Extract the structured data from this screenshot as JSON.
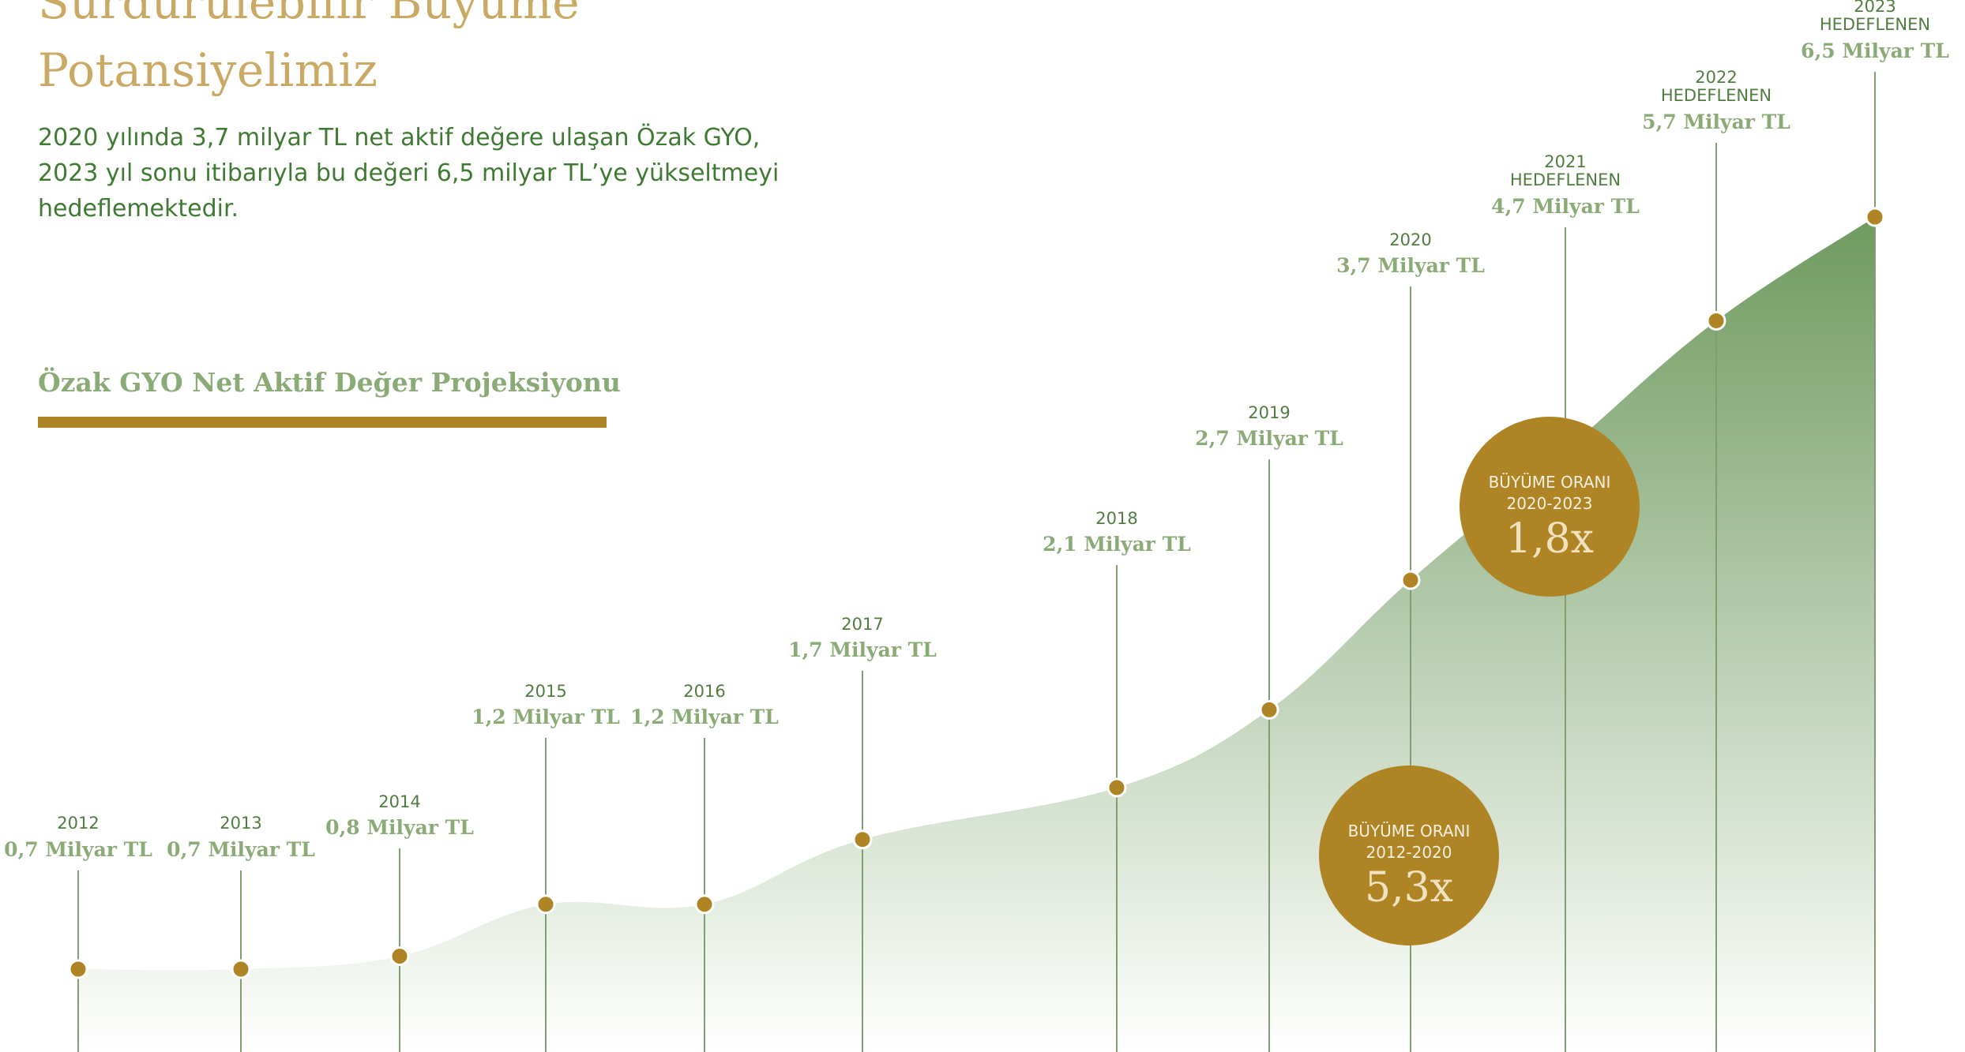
{
  "header": {
    "title_line1": "Sürdürülebilir Büyüme",
    "title_line2": "Potansiyelimiz",
    "description": "2020 yılında 3,7 milyar TL net aktif değere ulaşan Özak GYO, 2023 yıl sonu itibarıyla bu değeri 6,5 milyar TL’ye yükseltmeyi hedeflemektedir.",
    "chart_title": "Özak GYO Net Aktif Değer Projeksiyonu"
  },
  "colors": {
    "gold": "#ae8424",
    "title_gold": "#c9a964",
    "green_dark": "#3f7a33",
    "green_light": "#8aaa76",
    "area_top": "#6f9a5f"
  },
  "chart_data": {
    "type": "area",
    "title": "Özak GYO Net Aktif Değer Projeksiyonu",
    "xlabel": "",
    "ylabel": "",
    "unit": "Milyar TL",
    "grid": false,
    "legend": "none",
    "ylim": [
      0,
      7
    ],
    "points": [
      {
        "year": "2012",
        "value": 0.7,
        "label": "0,7 Milyar TL",
        "target": ""
      },
      {
        "year": "2013",
        "value": 0.7,
        "label": "0,7 Milyar TL",
        "target": ""
      },
      {
        "year": "2014",
        "value": 0.8,
        "label": "0,8 Milyar TL",
        "target": ""
      },
      {
        "year": "2015",
        "value": 1.2,
        "label": "1,2 Milyar TL",
        "target": ""
      },
      {
        "year": "2016",
        "value": 1.2,
        "label": "1,2 Milyar TL",
        "target": ""
      },
      {
        "year": "2017",
        "value": 1.7,
        "label": "1,7 Milyar TL",
        "target": ""
      },
      {
        "year": "2018",
        "value": 2.1,
        "label": "2,1 Milyar TL",
        "target": ""
      },
      {
        "year": "2019",
        "value": 2.7,
        "label": "2,7 Milyar TL",
        "target": ""
      },
      {
        "year": "2020",
        "value": 3.7,
        "label": "3,7 Milyar TL",
        "target": ""
      },
      {
        "year": "2021",
        "value": 4.7,
        "label": "4,7 Milyar TL",
        "target": "HEDEFLENEN"
      },
      {
        "year": "2022",
        "value": 5.7,
        "label": "5,7 Milyar TL",
        "target": "HEDEFLENEN"
      },
      {
        "year": "2023",
        "value": 6.5,
        "label": "6,5 Milyar TL",
        "target": "HEDEFLENEN"
      }
    ],
    "badges": [
      {
        "label": "BÜYÜME ORANI",
        "period": "2012-2020",
        "value": "5,3x"
      },
      {
        "label": "BÜYÜME ORANI",
        "period": "2020-2023",
        "value": "1,8x"
      }
    ]
  }
}
